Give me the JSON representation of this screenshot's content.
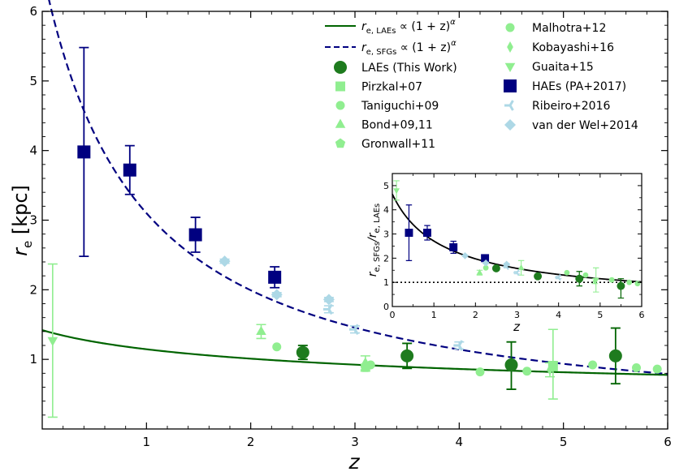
{
  "chart_data": [
    {
      "type": "scatter",
      "xlabel": "z",
      "ylabel": "r_e [kpc]",
      "ylabel_main": "r",
      "ylabel_sub": "e",
      "ylabel_unit": "[kpc]",
      "xlim": [
        0,
        6
      ],
      "ylim": [
        0,
        6
      ],
      "xticks": [
        "1",
        "2",
        "3",
        "4",
        "5",
        "6"
      ],
      "yticks": [
        "1",
        "2",
        "3",
        "4",
        "5",
        "6"
      ],
      "legend_position": "top-right",
      "curves": [
        {
          "name": "r_e,LAEs ∝ (1+z)^α",
          "label_pre": "r",
          "label_sub": "e, LAEs",
          "label_post": " ∝ (1 + z)",
          "label_sup": "α",
          "color": "#006400",
          "style": "solid",
          "norm": 1.42,
          "alpha": -0.31
        },
        {
          "name": "r_e,SFGs ∝ (1+z)^α",
          "label_pre": "r",
          "label_sub": "e, SFGs",
          "label_post": " ∝ (1 + z)",
          "label_sup": "α",
          "color": "#000080",
          "style": "dashed",
          "norm": 6.6,
          "alpha": -1.09
        }
      ],
      "series": [
        {
          "name": "LAEs (This Work)",
          "marker": "circle-large",
          "color": "#1e7b1e",
          "points": [
            [
              2.5,
              1.1,
              0.1,
              0.1
            ],
            [
              3.5,
              1.05,
              0.18,
              0.18
            ],
            [
              4.5,
              0.92,
              0.35,
              0.33
            ],
            [
              5.5,
              1.05,
              0.4,
              0.4
            ]
          ]
        },
        {
          "name": "Pirzkal+07",
          "marker": "square",
          "color": "#90ee90",
          "points": [
            [
              4.9,
              0.9,
              0,
              0
            ]
          ]
        },
        {
          "name": "Taniguchi+09",
          "marker": "circle",
          "color": "#90ee90",
          "points": [
            [
              3.15,
              0.92,
              0,
              0
            ]
          ]
        },
        {
          "name": "Bond+09,11",
          "marker": "triangle-up",
          "color": "#90ee90",
          "points": [
            [
              2.1,
              1.4,
              0.1,
              0.1
            ],
            [
              3.1,
              0.95,
              0.1,
              0.1
            ]
          ]
        },
        {
          "name": "Gronwall+11",
          "marker": "pentagon",
          "color": "#90ee90",
          "points": [
            [
              3.1,
              0.88,
              0.05,
              0.05
            ]
          ]
        },
        {
          "name": "Malhotra+12",
          "marker": "circle",
          "color": "#90ee90",
          "points": [
            [
              2.25,
              1.18,
              0,
              0
            ],
            [
              4.2,
              0.82,
              0,
              0
            ],
            [
              4.65,
              0.83,
              0,
              0
            ],
            [
              5.28,
              0.92,
              0,
              0
            ],
            [
              5.7,
              0.88,
              0,
              0
            ],
            [
              5.9,
              0.86,
              0,
              0
            ]
          ]
        },
        {
          "name": "Kobayashi+16",
          "marker": "thin-diamond",
          "color": "#90ee90",
          "points": [
            [
              4.87,
              0.85,
              0.1,
              0.1
            ]
          ]
        },
        {
          "name": "Guaita+15",
          "marker": "triangle-down",
          "color": "#90ee90",
          "points": [
            [
              0.1,
              1.27,
              1.1,
              1.1
            ],
            [
              4.9,
              0.93,
              0.5,
              0.5
            ]
          ]
        },
        {
          "name": "HAEs (PA+2017)",
          "marker": "square-large",
          "color": "#000080",
          "points": [
            [
              0.4,
              3.98,
              1.5,
              1.5
            ],
            [
              0.84,
              3.72,
              0.35,
              0.35
            ],
            [
              1.47,
              2.79,
              0.25,
              0.25
            ],
            [
              2.23,
              2.18,
              0.15,
              0.15
            ]
          ]
        },
        {
          "name": "Ribeiro+2016",
          "marker": "tri-left",
          "color": "#add8e6",
          "points": [
            [
              2.75,
              1.72,
              0.05,
              0.05
            ],
            [
              3.0,
              1.43,
              0.05,
              0.05
            ],
            [
              4.0,
              1.2,
              0.05,
              0.05
            ]
          ]
        },
        {
          "name": "van der Wel+2014",
          "marker": "diamond",
          "color": "#add8e6",
          "points": [
            [
              1.75,
              2.41,
              0.03,
              0.03
            ],
            [
              2.25,
              1.93,
              0.03,
              0.03
            ],
            [
              2.75,
              1.86,
              0.03,
              0.03
            ]
          ]
        }
      ]
    },
    {
      "type": "scatter",
      "role": "inset",
      "xlabel": "z",
      "ylabel": "r_e,SFGs / r_e,LAEs",
      "ylabel_pre": "r",
      "ylabel_sub1": "e, SFGs",
      "ylabel_mid": "/r",
      "ylabel_sub2": "e, LAEs",
      "xlim": [
        0,
        6
      ],
      "ylim": [
        0,
        5.5
      ],
      "xticks": [
        "0",
        "1",
        "2",
        "3",
        "4",
        "5",
        "6"
      ],
      "yticks": [
        "0",
        "1",
        "2",
        "3",
        "4",
        "5"
      ],
      "reference_line": {
        "y": 1,
        "style": "dotted"
      },
      "curve": {
        "norm": 4.65,
        "alpha": -0.78,
        "color": "#000000"
      },
      "series": [
        {
          "name": "LAEs (This Work)",
          "marker": "circle-large",
          "color": "#1e7b1e",
          "points": [
            [
              2.5,
              1.58,
              0,
              0
            ],
            [
              3.5,
              1.25,
              0,
              0
            ],
            [
              4.5,
              1.15,
              0.3,
              0.3
            ],
            [
              5.5,
              0.85,
              0.5,
              0.3
            ]
          ]
        },
        {
          "name": "HAEs (PA+2017)",
          "marker": "square-large",
          "color": "#000080",
          "points": [
            [
              0.4,
              3.05,
              1.15,
              1.15
            ],
            [
              0.84,
              3.05,
              0.3,
              0.3
            ],
            [
              1.47,
              2.45,
              0.25,
              0.25
            ],
            [
              2.23,
              2.0,
              0.1,
              0.1
            ]
          ]
        },
        {
          "name": "Guaita+15",
          "marker": "triangle-down",
          "color": "#90ee90",
          "points": [
            [
              0.1,
              4.8,
              0.4,
              0.4
            ],
            [
              4.9,
              1.1,
              0.5,
              0.5
            ]
          ]
        },
        {
          "name": "Bond+09,11",
          "marker": "triangle-up",
          "color": "#90ee90",
          "points": [
            [
              2.1,
              1.4,
              0.1,
              0.1
            ],
            [
              3.1,
              1.6,
              0.3,
              0.3
            ]
          ]
        },
        {
          "name": "Malhotra+12",
          "marker": "circle",
          "color": "#90ee90",
          "points": [
            [
              2.25,
              1.6,
              0,
              0
            ],
            [
              4.2,
              1.4,
              0,
              0
            ],
            [
              4.65,
              1.3,
              0,
              0
            ],
            [
              5.28,
              1.1,
              0,
              0
            ],
            [
              5.7,
              1.0,
              0,
              0
            ],
            [
              5.9,
              0.95,
              0,
              0
            ]
          ]
        },
        {
          "name": "Kobayashi+16",
          "marker": "thin-diamond",
          "color": "#90ee90",
          "points": [
            [
              4.87,
              1.05,
              0.1,
              0.1
            ]
          ]
        },
        {
          "name": "Ribeiro+2016",
          "marker": "tri-left",
          "color": "#add8e6",
          "points": [
            [
              2.75,
              1.65,
              0.05,
              0.05
            ],
            [
              3.0,
              1.4,
              0.05,
              0.05
            ],
            [
              4.0,
              1.2,
              0.05,
              0.05
            ]
          ]
        },
        {
          "name": "van der Wel+2014",
          "marker": "diamond",
          "color": "#add8e6",
          "points": [
            [
              1.75,
              2.1,
              0.03,
              0.03
            ],
            [
              2.25,
              1.8,
              0.03,
              0.03
            ],
            [
              2.75,
              1.75,
              0.03,
              0.03
            ]
          ]
        }
      ]
    }
  ]
}
